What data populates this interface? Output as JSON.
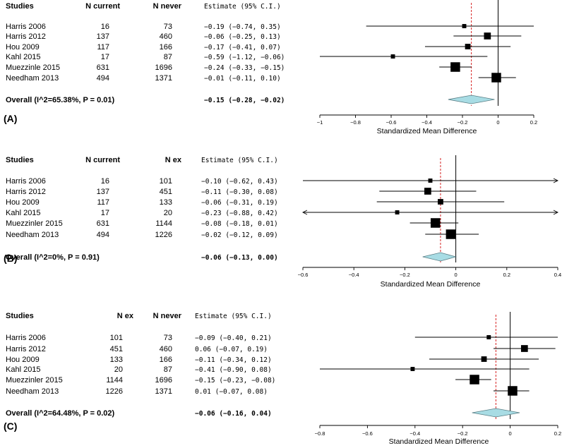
{
  "chart_data": [
    {
      "type": "forest",
      "panel_label": "(A)",
      "headers": [
        "Studies",
        "N current",
        "N never",
        "Estimate (95% C.I.)"
      ],
      "studies": [
        {
          "name": "Harris 2006",
          "n1": "16",
          "n2": "73",
          "est": -0.19,
          "lo": -0.74,
          "hi": 0.35,
          "est_text": "-0.19 (-0.74,  0.35)",
          "arrow_left": false,
          "arrow_right": false
        },
        {
          "name": "Harris 2012",
          "n1": "137",
          "n2": "460",
          "est": -0.06,
          "lo": -0.25,
          "hi": 0.13,
          "est_text": "-0.06 (-0.25,  0.13)",
          "arrow_left": false,
          "arrow_right": false
        },
        {
          "name": "Hou 2009",
          "n1": "117",
          "n2": "166",
          "est": -0.17,
          "lo": -0.41,
          "hi": 0.07,
          "est_text": "-0.17 (-0.41,  0.07)",
          "arrow_left": false,
          "arrow_right": false
        },
        {
          "name": "Kahl 2015",
          "n1": "17",
          "n2": "87",
          "est": -0.59,
          "lo": -1.12,
          "hi": -0.06,
          "est_text": "-0.59 (-1.12, -0.06)",
          "arrow_left": false,
          "arrow_right": false
        },
        {
          "name": "Muezzinle 2015",
          "n1": "631",
          "n2": "1696",
          "est": -0.24,
          "lo": -0.33,
          "hi": -0.15,
          "est_text": "-0.24 (-0.33, -0.15)",
          "arrow_left": false,
          "arrow_right": false
        },
        {
          "name": "Needham 2013",
          "n1": "494",
          "n2": "1371",
          "est": -0.01,
          "lo": -0.11,
          "hi": 0.1,
          "est_text": "-0.01 (-0.11,  0.10)",
          "arrow_left": false,
          "arrow_right": false
        }
      ],
      "weights": [
        1,
        3,
        2,
        1,
        5,
        5
      ],
      "overall": {
        "label": "Overall (I^2=65.38%, P = 0.01)",
        "est": -0.15,
        "lo": -0.28,
        "hi": -0.02,
        "est_text": "-0.15 (-0.28, -0.02)"
      },
      "xlim": [
        -1.0,
        0.2
      ],
      "ticks": [
        -1,
        -0.8,
        -0.6,
        -0.4,
        -0.2,
        0,
        0.2
      ],
      "tick_labels": [
        "−1",
        "−0.8",
        "−0.6",
        "−0.4",
        "−0.2",
        "0",
        "0.2"
      ],
      "xlabel": "Standardized Mean Difference"
    },
    {
      "type": "forest",
      "panel_label": "(B)",
      "headers": [
        "Studies",
        "N current",
        "N ex",
        "Estimate (95% C.I.)"
      ],
      "studies": [
        {
          "name": "Harris 2006",
          "n1": "16",
          "n2": "101",
          "est": -0.1,
          "lo": -0.62,
          "hi": 0.43,
          "est_text": "-0.10 (-0.62,  0.43)",
          "arrow_left": false,
          "arrow_right": true
        },
        {
          "name": "Harris  2012",
          "n1": "137",
          "n2": "451",
          "est": -0.11,
          "lo": -0.3,
          "hi": 0.08,
          "est_text": "-0.11 (-0.30,  0.08)",
          "arrow_left": false,
          "arrow_right": false
        },
        {
          "name": "Hou 2009",
          "n1": "117",
          "n2": "133",
          "est": -0.06,
          "lo": -0.31,
          "hi": 0.19,
          "est_text": "-0.06 (-0.31,  0.19)",
          "arrow_left": false,
          "arrow_right": false
        },
        {
          "name": "Kahl 2015",
          "n1": "17",
          "n2": "20",
          "est": -0.23,
          "lo": -0.88,
          "hi": 0.42,
          "est_text": "-0.23 (-0.88,  0.42)",
          "arrow_left": true,
          "arrow_right": true
        },
        {
          "name": "Muezzinler 2015",
          "n1": "631",
          "n2": "1144",
          "est": -0.08,
          "lo": -0.18,
          "hi": 0.01,
          "est_text": "-0.08 (-0.18,  0.01)",
          "arrow_left": false,
          "arrow_right": false
        },
        {
          "name": "Needham 2013",
          "n1": "494",
          "n2": "1226",
          "est": -0.02,
          "lo": -0.12,
          "hi": 0.09,
          "est_text": "-0.02 (-0.12,  0.09)",
          "arrow_left": false,
          "arrow_right": false
        }
      ],
      "weights": [
        1,
        3,
        2,
        1,
        5,
        5
      ],
      "overall": {
        "label": "Overall (I^2=0%, P = 0.91)",
        "est": -0.06,
        "lo": -0.13,
        "hi": 0.0,
        "est_text": "-0.06 (-0.13,  0.00)"
      },
      "xlim": [
        -0.6,
        0.4
      ],
      "ticks": [
        -0.6,
        -0.4,
        -0.2,
        0,
        0.2,
        0.4
      ],
      "tick_labels": [
        "−0.6",
        "−0.4",
        "−0.2",
        "0",
        "0.2",
        "0.4"
      ],
      "xlabel": "Standardized Mean Difference"
    },
    {
      "type": "forest",
      "panel_label": "(C)",
      "headers": [
        "Studies",
        "N ex",
        "N never",
        "Estimate (95% C.I.)"
      ],
      "studies": [
        {
          "name": "Harris 2006",
          "n1": "101",
          "n2": "73",
          "est": -0.09,
          "lo": -0.4,
          "hi": 0.21,
          "est_text": "-0.09 (-0.40,  0.21)",
          "arrow_left": false,
          "arrow_right": false
        },
        {
          "name": "Harris 2012",
          "n1": "451",
          "n2": "460",
          "est": 0.06,
          "lo": -0.07,
          "hi": 0.19,
          "est_text": " 0.06 (-0.07,  0.19)",
          "arrow_left": false,
          "arrow_right": false
        },
        {
          "name": "Hou 2009",
          "n1": "133",
          "n2": "166",
          "est": -0.11,
          "lo": -0.34,
          "hi": 0.12,
          "est_text": "-0.11 (-0.34,  0.12)",
          "arrow_left": false,
          "arrow_right": false
        },
        {
          "name": "Kahl 2015",
          "n1": "20",
          "n2": "87",
          "est": -0.41,
          "lo": -0.9,
          "hi": 0.08,
          "est_text": "-0.41 (-0.90,  0.08)",
          "arrow_left": false,
          "arrow_right": false
        },
        {
          "name": "Muezzinler 2015",
          "n1": "1144",
          "n2": "1696",
          "est": -0.15,
          "lo": -0.23,
          "hi": -0.08,
          "est_text": "-0.15 (-0.23, -0.08)",
          "arrow_left": false,
          "arrow_right": false
        },
        {
          "name": "Needham 2013",
          "n1": "1226",
          "n2": "1371",
          "est": 0.01,
          "lo": -0.07,
          "hi": 0.08,
          "est_text": " 0.01 (-0.07,  0.08)",
          "arrow_left": false,
          "arrow_right": false
        }
      ],
      "weights": [
        1,
        3,
        2,
        1,
        5,
        5
      ],
      "overall": {
        "label": "Overall (I^2=64.48%, P = 0.02)",
        "est": -0.06,
        "lo": -0.16,
        "hi": 0.04,
        "est_text": "-0.06 (-0.16,  0.04)"
      },
      "xlim": [
        -0.8,
        0.2
      ],
      "ticks": [
        -0.8,
        -0.6,
        -0.4,
        -0.2,
        0,
        0.2
      ],
      "tick_labels": [
        "−0.8",
        "−0.6",
        "−0.4",
        "−0.2",
        "0",
        "0.2"
      ],
      "xlabel": "Standardized Mean Difference"
    }
  ],
  "colors": {
    "diamond_fill": "#a8dce4",
    "diamond_stroke": "#5a7f86",
    "reference_line": "#d62020",
    "marker": "#000000",
    "line": "#000000"
  }
}
